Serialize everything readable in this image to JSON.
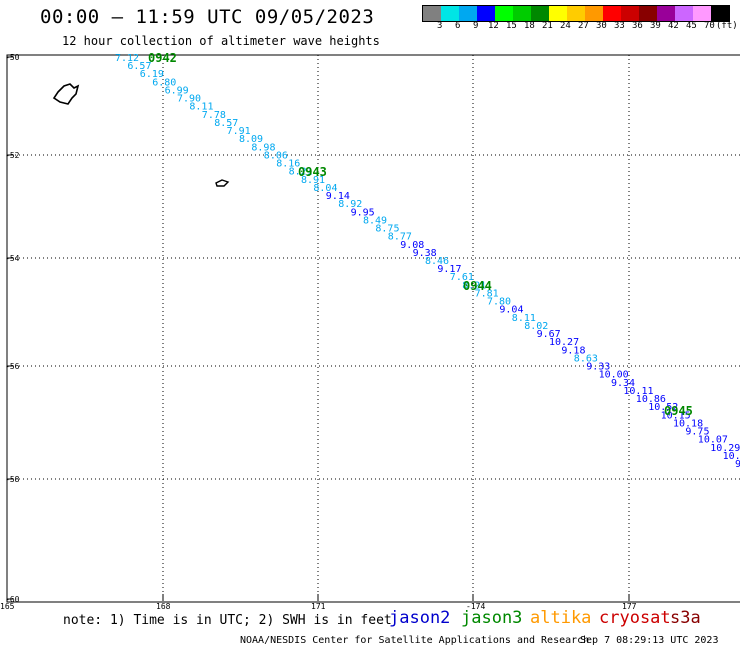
{
  "header": {
    "title": "00:00 – 11:59 UTC 09/05/2023",
    "subtitle": "12 hour collection of altimeter wave heights"
  },
  "colorbar": {
    "colors": [
      "#808080",
      "#00e5e5",
      "#00a8f0",
      "#0000ff",
      "#00ff00",
      "#00cc00",
      "#008800",
      "#ffff00",
      "#ffcc00",
      "#ff9900",
      "#ff0000",
      "#cc0000",
      "#880000",
      "#990099",
      "#cc66ff",
      "#ff99ff",
      "#000000"
    ],
    "labels": [
      "3",
      "6",
      "9",
      "12",
      "15",
      "18",
      "21",
      "24",
      "27",
      "30",
      "33",
      "36",
      "39",
      "42",
      "45",
      "70"
    ],
    "unit": "(ft)"
  },
  "map": {
    "lat_labels": [
      "-50",
      "-52",
      "-54",
      "-56",
      "-58",
      "-60"
    ],
    "lon_labels": [
      "165",
      "168",
      "171",
      "-174",
      "177"
    ],
    "time_labels": [
      "0942",
      "0943",
      "0944",
      "0945"
    ],
    "track_colors": {
      "light": "#00a8f0",
      "dark": "#0000ff",
      "time": "#008800"
    },
    "wave_heights": [
      {
        "v": "7.12",
        "c": "light"
      },
      {
        "v": "6.57",
        "c": "light"
      },
      {
        "v": "6.19",
        "c": "light"
      },
      {
        "v": "6.80",
        "c": "light"
      },
      {
        "v": "6.99",
        "c": "light"
      },
      {
        "v": "7.90",
        "c": "light"
      },
      {
        "v": "8.11",
        "c": "light"
      },
      {
        "v": "7.78",
        "c": "light"
      },
      {
        "v": "8.57",
        "c": "light"
      },
      {
        "v": "7.91",
        "c": "light"
      },
      {
        "v": "8.09",
        "c": "light"
      },
      {
        "v": "8.98",
        "c": "light"
      },
      {
        "v": "8.06",
        "c": "light"
      },
      {
        "v": "8.16",
        "c": "light"
      },
      {
        "v": "8.21",
        "c": "light"
      },
      {
        "v": "8.91",
        "c": "light"
      },
      {
        "v": "8.04",
        "c": "light"
      },
      {
        "v": "9.14",
        "c": "dark"
      },
      {
        "v": "8.92",
        "c": "light"
      },
      {
        "v": "9.95",
        "c": "dark"
      },
      {
        "v": "8.49",
        "c": "light"
      },
      {
        "v": "8.75",
        "c": "light"
      },
      {
        "v": "8.77",
        "c": "light"
      },
      {
        "v": "9.08",
        "c": "dark"
      },
      {
        "v": "9.38",
        "c": "dark"
      },
      {
        "v": "8.46",
        "c": "light"
      },
      {
        "v": "9.17",
        "c": "dark"
      },
      {
        "v": "7.61",
        "c": "light"
      },
      {
        "v": "8.21",
        "c": "light"
      },
      {
        "v": "7.81",
        "c": "light"
      },
      {
        "v": "7.80",
        "c": "light"
      },
      {
        "v": "9.04",
        "c": "dark"
      },
      {
        "v": "8.11",
        "c": "light"
      },
      {
        "v": "8.02",
        "c": "light"
      },
      {
        "v": "9.67",
        "c": "dark"
      },
      {
        "v": "10.27",
        "c": "dark"
      },
      {
        "v": "9.18",
        "c": "dark"
      },
      {
        "v": "8.63",
        "c": "light"
      },
      {
        "v": "9.33",
        "c": "dark"
      },
      {
        "v": "10.00",
        "c": "dark"
      },
      {
        "v": "9.34",
        "c": "dark"
      },
      {
        "v": "10.11",
        "c": "dark"
      },
      {
        "v": "10.86",
        "c": "dark"
      },
      {
        "v": "10.52",
        "c": "dark"
      },
      {
        "v": "10.15",
        "c": "dark"
      },
      {
        "v": "10.18",
        "c": "dark"
      },
      {
        "v": "9.75",
        "c": "dark"
      },
      {
        "v": "10.07",
        "c": "dark"
      },
      {
        "v": "10.29",
        "c": "dark"
      },
      {
        "v": "10.5",
        "c": "dark"
      },
      {
        "v": "9",
        "c": "dark"
      }
    ]
  },
  "footer": {
    "note": "note: 1) Time is in UTC; 2) SWH is in feet",
    "satellites": [
      {
        "name": "jason2",
        "color": "#0000cc"
      },
      {
        "name": "jason3",
        "color": "#008800"
      },
      {
        "name": "altika",
        "color": "#ff9900"
      },
      {
        "name": "cryosat",
        "color": "#cc0000"
      },
      {
        "name": "s3a",
        "color": "#880000"
      }
    ],
    "credit": "NOAA/NESDIS Center for Satellite Applications and Research",
    "timestamp": "Sep  7 08:29:13 UTC 2023"
  }
}
